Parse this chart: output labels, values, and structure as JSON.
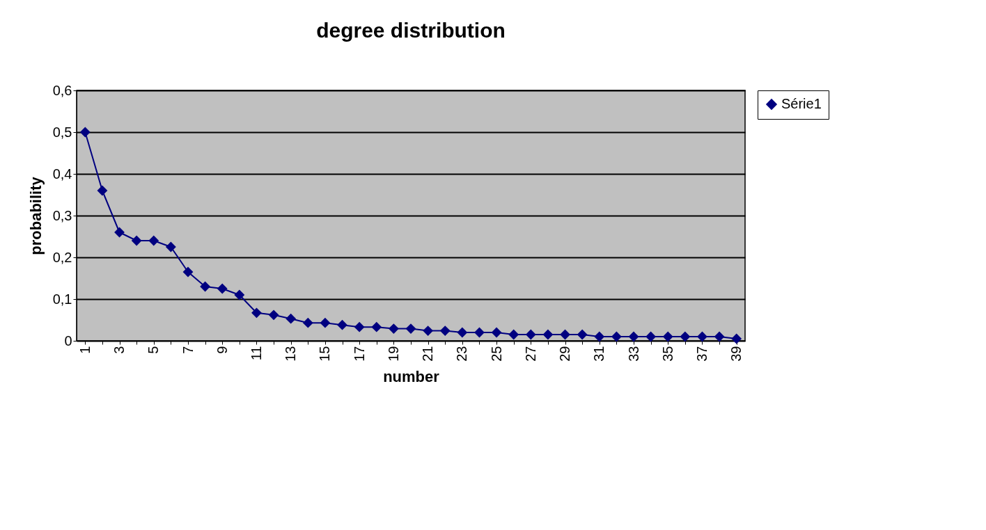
{
  "chart_data": {
    "type": "line",
    "title": "degree distribution",
    "xlabel": "number",
    "ylabel": "probability",
    "categories": [
      "1",
      null,
      "3",
      null,
      "5",
      null,
      "7",
      null,
      "9",
      null,
      "11",
      null,
      "13",
      null,
      "15",
      null,
      "17",
      null,
      "19",
      null,
      "21",
      null,
      "23",
      null,
      "25",
      null,
      "27",
      null,
      "29",
      null,
      "31",
      null,
      "33",
      null,
      "35",
      null,
      "37",
      null,
      "39"
    ],
    "series": [
      {
        "name": "Série1",
        "color": "#000080",
        "values": [
          0.5,
          0.36,
          0.26,
          0.24,
          0.24,
          0.225,
          0.165,
          0.13,
          0.125,
          0.11,
          0.067,
          0.062,
          0.053,
          0.043,
          0.043,
          0.038,
          0.033,
          0.033,
          0.029,
          0.029,
          0.024,
          0.024,
          0.02,
          0.02,
          0.02,
          0.015,
          0.015,
          0.015,
          0.015,
          0.015,
          0.01,
          0.01,
          0.01,
          0.01,
          0.01,
          0.01,
          0.01,
          0.01,
          0.005
        ]
      }
    ],
    "ylim": [
      0,
      0.6
    ],
    "yticks": [
      {
        "value": 0,
        "label": "0"
      },
      {
        "value": 0.1,
        "label": "0,1"
      },
      {
        "value": 0.2,
        "label": "0,2"
      },
      {
        "value": 0.3,
        "label": "0,3"
      },
      {
        "value": 0.4,
        "label": "0,4"
      },
      {
        "value": 0.5,
        "label": "0,5"
      },
      {
        "value": 0.6,
        "label": "0,6"
      }
    ],
    "grid": "y",
    "legend": "right",
    "marker": "diamond",
    "line_style": "solid"
  }
}
